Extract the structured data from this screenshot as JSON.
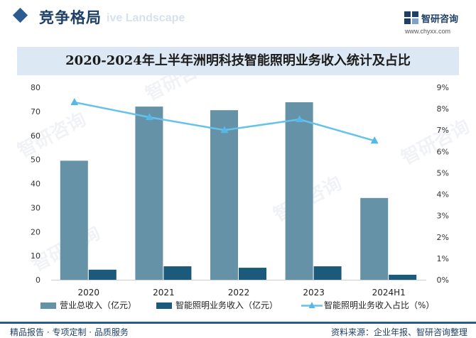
{
  "header": {
    "section_title": "竞争格局",
    "section_subtitle": "ive Landscape",
    "logo_name": "智研咨询",
    "logo_url": "www.chyxx.com"
  },
  "watermark": "智研咨询",
  "chart_data": {
    "type": "bar",
    "title": "2020-2024年上半年洲明科技智能照明业务收入统计及占比",
    "categories": [
      "2020",
      "2021",
      "2022",
      "2023",
      "2024H1"
    ],
    "series": [
      {
        "name": "营业总收入（亿元）",
        "type": "bar",
        "axis": "left",
        "color": "#6592a6",
        "values": [
          49.5,
          72.0,
          70.5,
          73.8,
          34.0
        ]
      },
      {
        "name": "智能照明业务收入（亿元）",
        "type": "bar",
        "axis": "left",
        "color": "#1c5a7c",
        "values": [
          4.2,
          5.6,
          5.0,
          5.6,
          2.1
        ]
      },
      {
        "name": "智能照明业务收入占比（%）",
        "type": "line",
        "axis": "right",
        "color": "#66c2ea",
        "values": [
          8.3,
          7.6,
          7.0,
          7.5,
          6.5
        ]
      }
    ],
    "y_left": {
      "min": 0,
      "max": 80,
      "ticks": [
        "0",
        "10",
        "20",
        "30",
        "40",
        "50",
        "60",
        "70",
        "80"
      ]
    },
    "y_right": {
      "min": 0,
      "max": 9,
      "ticks": [
        "0%",
        "1%",
        "2%",
        "3%",
        "4%",
        "5%",
        "6%",
        "7%",
        "8%",
        "9%"
      ]
    },
    "grid": false,
    "legend_position": "bottom"
  },
  "footer": {
    "left": "精品报告 · 专项定制 · 品质服务",
    "right": "资料来源：企业年报、智研咨询整理"
  }
}
